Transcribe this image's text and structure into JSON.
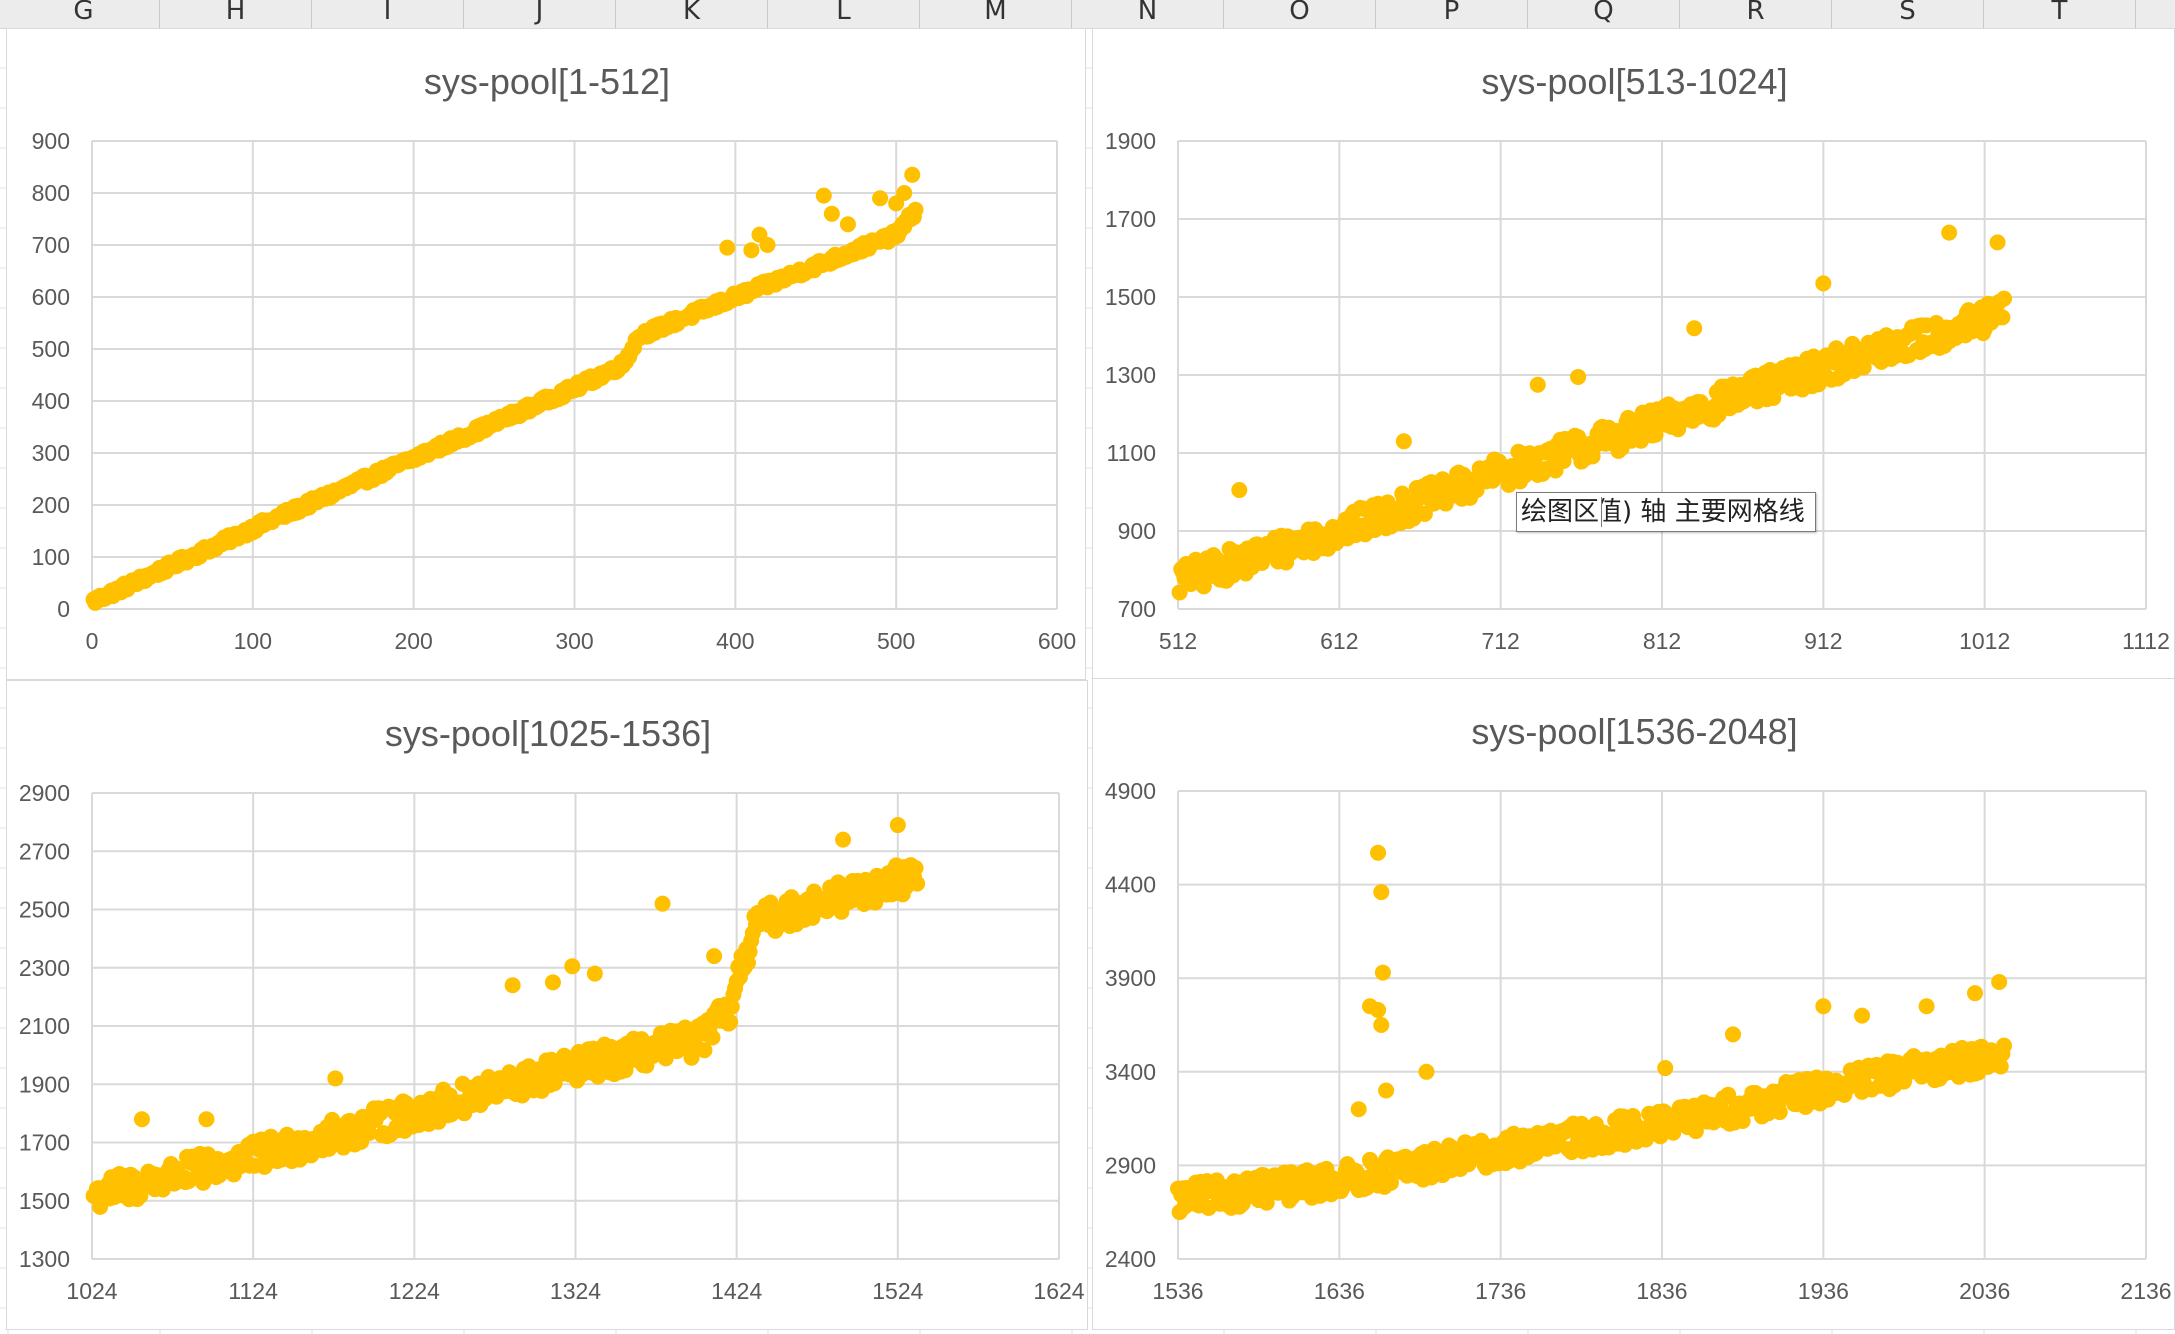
{
  "spreadsheet": {
    "columns": [
      "G",
      "H",
      "I",
      "J",
      "K",
      "L",
      "M",
      "N",
      "O",
      "P",
      "Q",
      "R",
      "S",
      "T"
    ]
  },
  "colors": {
    "marker": "#FFC000",
    "gridline": "#d9d9d9",
    "axis_text": "#595959",
    "title_text": "#595959"
  },
  "tooltip": {
    "part1": "绘图区",
    "part2": "值) 轴 主要网格线"
  },
  "chart_data": [
    {
      "type": "scatter",
      "title": "sys-pool[1-512]",
      "xlabel": "",
      "ylabel": "",
      "xlim": [
        0,
        600
      ],
      "ylim": [
        0,
        900
      ],
      "xticks": [
        0,
        100,
        200,
        300,
        400,
        500,
        600
      ],
      "yticks": [
        0,
        100,
        200,
        300,
        400,
        500,
        600,
        700,
        800,
        900
      ],
      "x_range": [
        1,
        512
      ],
      "trend": [
        [
          1,
          15
        ],
        [
          100,
          155
        ],
        [
          200,
          290
        ],
        [
          300,
          425
        ],
        [
          330,
          470
        ],
        [
          340,
          525
        ],
        [
          400,
          600
        ],
        [
          500,
          720
        ],
        [
          512,
          765
        ]
      ],
      "noise": 8,
      "outliers": [
        [
          395,
          695
        ],
        [
          410,
          690
        ],
        [
          415,
          720
        ],
        [
          420,
          700
        ],
        [
          455,
          795
        ],
        [
          460,
          760
        ],
        [
          470,
          740
        ],
        [
          490,
          790
        ],
        [
          500,
          780
        ],
        [
          505,
          800
        ],
        [
          510,
          835
        ]
      ]
    },
    {
      "type": "scatter",
      "title": "sys-pool[513-1024]",
      "xlabel": "",
      "ylabel": "",
      "xlim": [
        512,
        1112
      ],
      "ylim": [
        700,
        1900
      ],
      "xticks": [
        512,
        612,
        712,
        812,
        912,
        1012,
        1112
      ],
      "yticks": [
        700,
        900,
        1100,
        1300,
        1500,
        1700,
        1900
      ],
      "x_range": [
        513,
        1024
      ],
      "trend": [
        [
          513,
          775
        ],
        [
          612,
          900
        ],
        [
          712,
          1050
        ],
        [
          812,
          1180
        ],
        [
          912,
          1320
        ],
        [
          1012,
          1440
        ],
        [
          1024,
          1460
        ]
      ],
      "noise": 40,
      "outliers": [
        [
          550,
          1005
        ],
        [
          652,
          1130
        ],
        [
          735,
          1275
        ],
        [
          760,
          1295
        ],
        [
          832,
          1420
        ],
        [
          912,
          1535
        ],
        [
          990,
          1665
        ],
        [
          1020,
          1640
        ]
      ]
    },
    {
      "type": "scatter",
      "title": "sys-pool[1025-1536]",
      "xlabel": "",
      "ylabel": "",
      "xlim": [
        1024,
        1624
      ],
      "ylim": [
        1300,
        2900
      ],
      "xticks": [
        1024,
        1124,
        1224,
        1324,
        1424,
        1524,
        1624
      ],
      "yticks": [
        1300,
        1500,
        1700,
        1900,
        2100,
        2300,
        2500,
        2700,
        2900
      ],
      "x_range": [
        1025,
        1536
      ],
      "trend": [
        [
          1025,
          1520
        ],
        [
          1124,
          1650
        ],
        [
          1224,
          1800
        ],
        [
          1324,
          1960
        ],
        [
          1400,
          2050
        ],
        [
          1420,
          2150
        ],
        [
          1435,
          2450
        ],
        [
          1460,
          2500
        ],
        [
          1524,
          2600
        ],
        [
          1536,
          2620
        ]
      ],
      "noise": 55,
      "outliers": [
        [
          1055,
          1780
        ],
        [
          1095,
          1780
        ],
        [
          1175,
          1920
        ],
        [
          1285,
          2240
        ],
        [
          1310,
          2250
        ],
        [
          1322,
          2305
        ],
        [
          1336,
          2280
        ],
        [
          1378,
          2520
        ],
        [
          1410,
          2340
        ],
        [
          1490,
          2740
        ],
        [
          1524,
          2790
        ]
      ]
    },
    {
      "type": "scatter",
      "title": "sys-pool[1536-2048]",
      "xlabel": "",
      "ylabel": "",
      "xlim": [
        1536,
        2136
      ],
      "ylim": [
        2400,
        4900
      ],
      "xticks": [
        1536,
        1636,
        1736,
        1836,
        1936,
        2036,
        2136
      ],
      "yticks": [
        2400,
        2900,
        3400,
        3900,
        4400,
        4900
      ],
      "x_range": [
        1536,
        2048
      ],
      "trend": [
        [
          1536,
          2720
        ],
        [
          1636,
          2820
        ],
        [
          1736,
          2980
        ],
        [
          1836,
          3120
        ],
        [
          1936,
          3310
        ],
        [
          2036,
          3480
        ],
        [
          2048,
          3500
        ]
      ],
      "noise": 80,
      "outliers": [
        [
          1660,
          4570
        ],
        [
          1662,
          4360
        ],
        [
          1663,
          3930
        ],
        [
          1655,
          3750
        ],
        [
          1660,
          3730
        ],
        [
          1662,
          3650
        ],
        [
          1648,
          3200
        ],
        [
          1665,
          3300
        ],
        [
          1690,
          3400
        ],
        [
          1838,
          3420
        ],
        [
          1880,
          3600
        ],
        [
          1936,
          3750
        ],
        [
          1960,
          3700
        ],
        [
          2000,
          3750
        ],
        [
          2045,
          3880
        ],
        [
          2030,
          3820
        ]
      ]
    }
  ]
}
